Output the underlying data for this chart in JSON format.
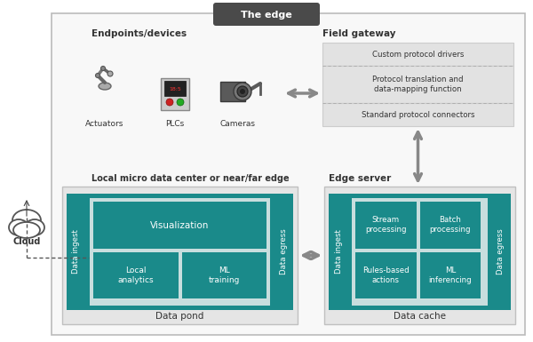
{
  "title": "The edge",
  "bg_color": "#ffffff",
  "teal": "#1a8a8a",
  "light_gray_box": "#e8e8e8",
  "inner_light": "#c8dede",
  "dark_gray_text": "#333333",
  "arrow_color": "#999999",
  "pill_color": "#4a4a4a",
  "section_labels": {
    "endpoints": "Endpoints/devices",
    "field_gateway": "Field gateway",
    "local_micro": "Local micro data center or near/far edge",
    "edge_server": "Edge server",
    "cloud": "Cloud"
  },
  "field_gateway_boxes": [
    "Custom protocol drivers",
    "Protocol translation and\ndata-mapping function",
    "Standard protocol connectors"
  ],
  "local_box": {
    "outer_label_bottom": "Data pond",
    "left_bar": "Data ingest",
    "right_bar": "Data egress",
    "inner_top": "Visualization",
    "inner_bottom_left": "Local\nanalytics",
    "inner_bottom_right": "ML\ntraining"
  },
  "edge_server_box": {
    "outer_label_bottom": "Data cache",
    "left_bar": "Data ingest",
    "right_bar": "Data egress",
    "inner_top_left": "Stream\nprocessing",
    "inner_top_right": "Batch\nprocessing",
    "inner_bottom_left": "Rules-based\nactions",
    "inner_bottom_right": "ML\ninferencing"
  },
  "device_labels": [
    "Actuators",
    "PLCs",
    "Cameras"
  ]
}
